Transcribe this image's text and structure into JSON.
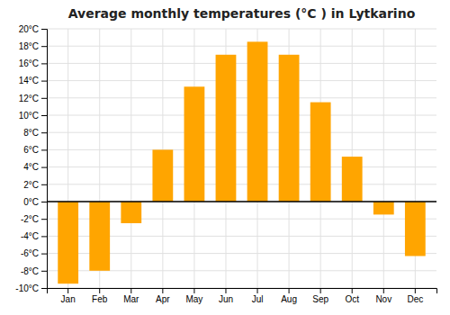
{
  "chart_data": {
    "type": "bar",
    "title": "Average monthly temperatures (°C ) in Lytkarino",
    "categories": [
      "Jan",
      "Feb",
      "Mar",
      "Apr",
      "May",
      "Jun",
      "Jul",
      "Aug",
      "Sep",
      "Oct",
      "Nov",
      "Dec"
    ],
    "values": [
      -9.5,
      -8.0,
      -2.5,
      6.0,
      13.3,
      17.0,
      18.5,
      17.0,
      11.5,
      5.2,
      -1.5,
      -6.3
    ],
    "color": "#FFA500",
    "ylim": [
      -10,
      20
    ],
    "yticks": [
      {
        "value": -10,
        "label": "-10°C"
      },
      {
        "value": -8,
        "label": "-8°C"
      },
      {
        "value": -6,
        "label": "-6°C"
      },
      {
        "value": -4,
        "label": "-4°C"
      },
      {
        "value": -2,
        "label": "-2°C"
      },
      {
        "value": 0,
        "label": "0°C"
      },
      {
        "value": 2,
        "label": "2°C"
      },
      {
        "value": 4,
        "label": "4°C"
      },
      {
        "value": 6,
        "label": "6°C"
      },
      {
        "value": 8,
        "label": "8°C"
      },
      {
        "value": 10,
        "label": "10°C"
      },
      {
        "value": 12,
        "label": "12°C"
      },
      {
        "value": 14,
        "label": "14°C"
      },
      {
        "value": 16,
        "label": "16°C"
      },
      {
        "value": 18,
        "label": "18°C"
      },
      {
        "value": 20,
        "label": "20°C"
      }
    ],
    "grid": true
  }
}
